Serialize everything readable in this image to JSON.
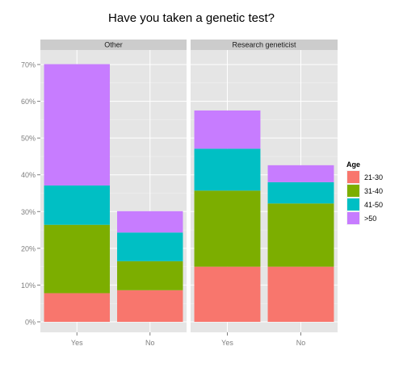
{
  "chart_data": {
    "type": "bar",
    "stacked": true,
    "title": "Have you taken a genetic test?",
    "categories": [
      "Yes",
      "No"
    ],
    "panels": [
      {
        "name": "Other",
        "series": [
          {
            "name": "21-30",
            "values": [
              7.8,
              8.6
            ]
          },
          {
            "name": "31-40",
            "values": [
              18.6,
              7.9
            ]
          },
          {
            "name": "41-50",
            "values": [
              10.7,
              7.8
            ]
          },
          {
            "name": ">50",
            "values": [
              33.0,
              5.8
            ]
          }
        ]
      },
      {
        "name": "Research geneticist",
        "series": [
          {
            "name": "21-30",
            "values": [
              15.0,
              15.0
            ]
          },
          {
            "name": "31-40",
            "values": [
              20.7,
              17.2
            ]
          },
          {
            "name": "41-50",
            "values": [
              11.4,
              5.8
            ]
          },
          {
            "name": ">50",
            "values": [
              10.4,
              4.6
            ]
          }
        ]
      }
    ],
    "ylim": [
      0,
      70
    ],
    "yticks": [
      "0%",
      "10%",
      "20%",
      "30%",
      "40%",
      "50%",
      "60%",
      "70%"
    ],
    "legend": {
      "title": "Age",
      "position": "right",
      "items": [
        "21-30",
        "31-40",
        "41-50",
        ">50"
      ]
    },
    "colors": [
      "#F8766D",
      "#7CAE00",
      "#00BFC4",
      "#C77CFF"
    ],
    "grid": true
  }
}
